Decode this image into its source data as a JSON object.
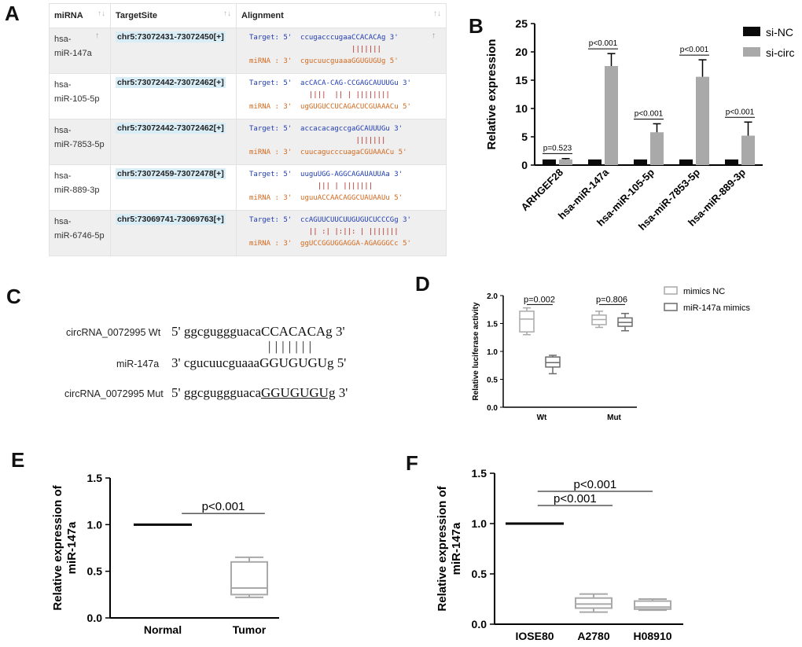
{
  "panel_letters": {
    "a": "A",
    "b": "B",
    "c": "C",
    "d": "D",
    "e": "E",
    "f": "F"
  },
  "tableA": {
    "headers": [
      "miRNA",
      "TargetSite",
      "Alignment"
    ],
    "rows": [
      {
        "mirna_line1": "hsa-",
        "mirna_line2": "miR-147a",
        "site": "chr5:73072431-73072450[+]",
        "target": "Target: 5'  ccugacccugaaCCACACAg 3'",
        "bars": "                        |||||||",
        "mirna": "miRNA : 3'  cgucuucguaaaGGUGUGUg 5'"
      },
      {
        "mirna_line1": "hsa-",
        "mirna_line2": "miR-105-5p",
        "site": "chr5:73072442-73072462[+]",
        "target": "Target: 5'  acCACA-CAG-CCGAGCAUUUGu 3'",
        "bars": "              ||||  || | ||||||||",
        "mirna": "miRNA : 3'  ugGUGUCCUCAGACUCGUAAACu 5'"
      },
      {
        "mirna_line1": "hsa-",
        "mirna_line2": "miR-7853-5p",
        "site": "chr5:73072442-73072462[+]",
        "target": "Target: 5'  accacacagccgaGCAUUUGu 3'",
        "bars": "                         |||||||",
        "mirna": "miRNA : 3'  cuucagucccuagaCGUAAACu 5'"
      },
      {
        "mirna_line1": "hsa-",
        "mirna_line2": "miR-889-3p",
        "site": "chr5:73072459-73072478[+]",
        "target": "Target: 5'  uuguUGG-AGGCAGAUAUUAa 3'",
        "bars": "                ||| | |||||||",
        "mirna": "miRNA : 3'  uguuACCAACAGGCUAUAAUu 5'"
      },
      {
        "mirna_line1": "hsa-",
        "mirna_line2": "miR-6746-5p",
        "site": "chr5:73069741-73069763[+]",
        "target": "Target: 5'  ccAGUUCUUCUUGUGUCUCCCGg 3'",
        "bars": "              || :| |:||: | |||||||",
        "mirna": "miRNA : 3'  ggUCCGGUGGAGGA-AGAGGGCc 5'"
      }
    ]
  },
  "panel_c": {
    "wt_label": "circRNA_0072995 Wt",
    "wt_seq_prefix": "5' ggcguggguaca",
    "wt_seq_caps": "CCACACAg",
    "wt_seq_suffix": " 3'",
    "bars": "|||||||",
    "mir_label": "miR-147a",
    "mir_seq_prefix": "3' cgucuucguaaa",
    "mir_seq_caps": "GGUGUGUg",
    "mir_seq_suffix": " 5'",
    "mut_label": "circRNA_0072995 Mut",
    "mut_seq_prefix": "5' ggcguggguaca",
    "mut_seq_caps": "GGUGUGUg",
    "mut_seq_suffix": " 3'"
  },
  "colors": {
    "black_bar": "#0a0a0a",
    "grey_bar": "#a9a9a9",
    "box_light": "#a9a9a9",
    "box_dark": "#6b6b6b"
  },
  "chart_data": [
    {
      "id": "B",
      "type": "bar",
      "categories": [
        "ARHGEF28",
        "hsa-miR-147a",
        "hsa-miR-105-5p",
        "hsa-miR-7853-5p",
        "hsa-miR-889-3p"
      ],
      "series": [
        {
          "name": "si-NC",
          "values": [
            1,
            1,
            1,
            1,
            1
          ],
          "errors": [
            0,
            0,
            0,
            0,
            0
          ]
        },
        {
          "name": "si-circ",
          "values": [
            1.0,
            17.5,
            5.8,
            15.6,
            5.2
          ],
          "errors": [
            0.15,
            2.2,
            1.5,
            3.0,
            2.4
          ]
        }
      ],
      "annotations": [
        "p=0.523",
        "p<0.001",
        "p<0.001",
        "p<0.001",
        "p<0.001"
      ],
      "ylabel": "Relative expression",
      "ylim": [
        0,
        25
      ],
      "yticks": [
        "0",
        "5",
        "10",
        "15",
        "20",
        "25"
      ]
    },
    {
      "id": "D",
      "type": "box",
      "groups": [
        "Wt",
        "Mut"
      ],
      "series": [
        {
          "name": "mimics NC",
          "boxes": [
            {
              "min": 1.3,
              "q1": 1.35,
              "median": 1.58,
              "q3": 1.72,
              "max": 1.78
            },
            {
              "min": 1.43,
              "q1": 1.48,
              "median": 1.57,
              "q3": 1.65,
              "max": 1.72
            }
          ]
        },
        {
          "name": "miR-147a mimics",
          "boxes": [
            {
              "min": 0.6,
              "q1": 0.72,
              "median": 0.8,
              "q3": 0.9,
              "max": 0.93
            },
            {
              "min": 1.37,
              "q1": 1.45,
              "median": 1.52,
              "q3": 1.6,
              "max": 1.68
            }
          ]
        }
      ],
      "annotations": [
        "p=0.002",
        "p=0.806"
      ],
      "ylabel": "Relative luciferase activity",
      "ylim": [
        0,
        2.0
      ],
      "yticks": [
        "0.0",
        "0.5",
        "1.0",
        "1.5",
        "2.0"
      ]
    },
    {
      "id": "E",
      "type": "box",
      "categories": [
        "Normal",
        "Tumor"
      ],
      "boxes": [
        {
          "min": 1.0,
          "q1": 1.0,
          "median": 1.0,
          "q3": 1.0,
          "max": 1.0
        },
        {
          "min": 0.22,
          "q1": 0.25,
          "median": 0.32,
          "q3": 0.6,
          "max": 0.65
        }
      ],
      "annotations": [
        "p<0.001"
      ],
      "ylabel_line1": "Relative expression of",
      "ylabel_line2": "miR-147a",
      "ylim": [
        0,
        1.5
      ],
      "yticks": [
        "0.0",
        "0.5",
        "1.0",
        "1.5"
      ]
    },
    {
      "id": "F",
      "type": "box",
      "categories": [
        "IOSE80",
        "A2780",
        "H08910"
      ],
      "boxes": [
        {
          "min": 1.0,
          "q1": 1.0,
          "median": 1.0,
          "q3": 1.0,
          "max": 1.0
        },
        {
          "min": 0.12,
          "q1": 0.16,
          "median": 0.2,
          "q3": 0.26,
          "max": 0.3
        },
        {
          "min": 0.14,
          "q1": 0.15,
          "median": 0.17,
          "q3": 0.23,
          "max": 0.25
        }
      ],
      "annotations": [
        "p<0.001",
        "p<0.001"
      ],
      "ylabel_line1": "Relative expression of",
      "ylabel_line2": "miR-147a",
      "ylim": [
        0,
        1.5
      ],
      "yticks": [
        "0.0",
        "0.5",
        "1.0",
        "1.5"
      ]
    }
  ]
}
